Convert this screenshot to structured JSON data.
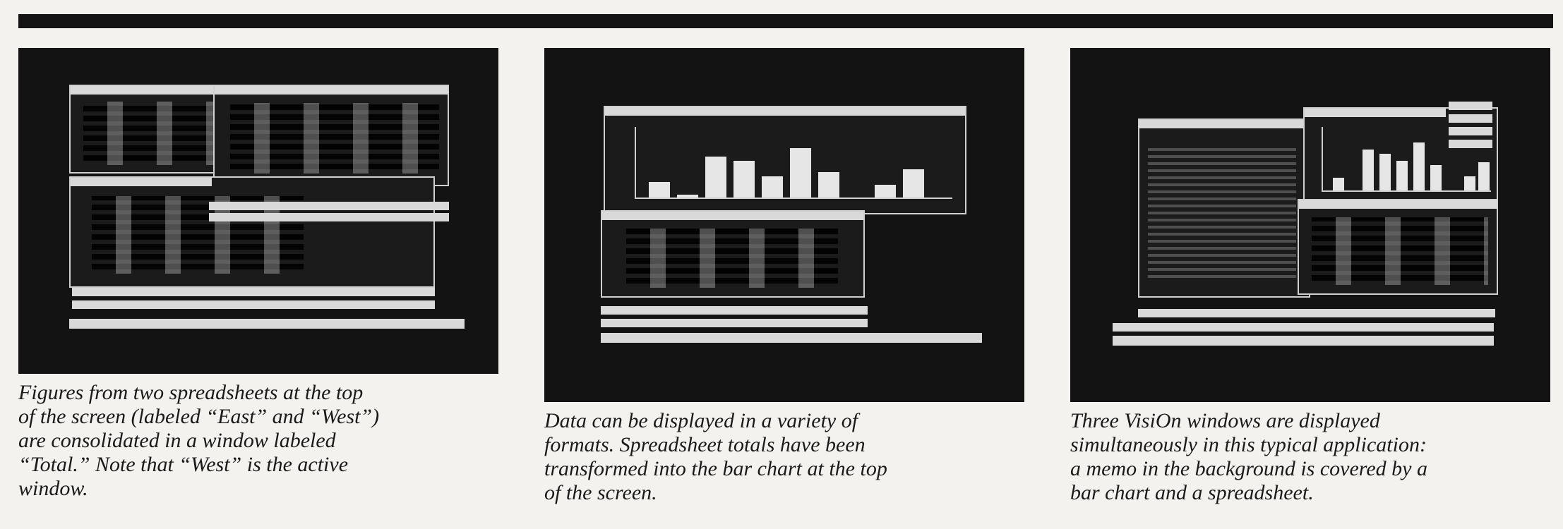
{
  "figures": [
    {
      "caption": "Figures from two spreadsheets at the top\nof the screen (labeled “East” and “West”)\nare consolidated in a window labeled\n“Total.” Note that “West” is the active\nwindow."
    },
    {
      "caption": "Data can be displayed in a variety of\nformats. Spreadsheet totals have been\ntransformed into the bar chart at the top\nof the screen."
    },
    {
      "caption": "Three VisiOn windows are displayed\nsimultaneously in this typical application:\na memo in the background is covered by a\nbar chart and a spreadsheet."
    }
  ]
}
